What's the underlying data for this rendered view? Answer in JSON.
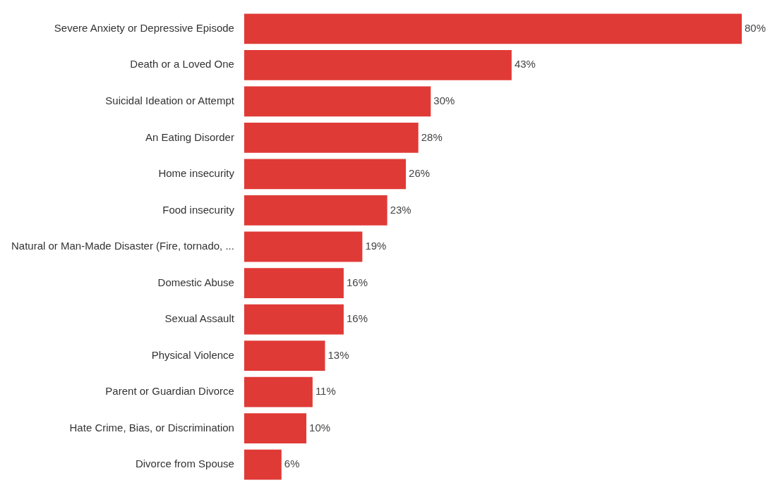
{
  "chart_data": {
    "type": "bar",
    "orientation": "horizontal",
    "categories": [
      "Severe Anxiety or Depressive Episode",
      "Death or a Loved One",
      "Suicidal Ideation or Attempt",
      "An Eating Disorder",
      "Home insecurity",
      "Food insecurity",
      "Natural or Man-Made Disaster (Fire, tornado, ...",
      "Domestic Abuse",
      "Sexual Assault",
      "Physical Violence",
      "Parent or Guardian Divorce",
      "Hate Crime, Bias, or Discrimination",
      "Divorce from Spouse"
    ],
    "values": [
      80,
      43,
      30,
      28,
      26,
      23,
      19,
      16,
      16,
      13,
      11,
      10,
      6
    ],
    "value_labels": [
      "80%",
      "43%",
      "30%",
      "28%",
      "26%",
      "23%",
      "19%",
      "16%",
      "16%",
      "13%",
      "11%",
      "10%",
      "6%"
    ],
    "color": "#e03a36",
    "xlim": [
      0,
      80
    ],
    "tick_labels": "y",
    "legend": false
  }
}
